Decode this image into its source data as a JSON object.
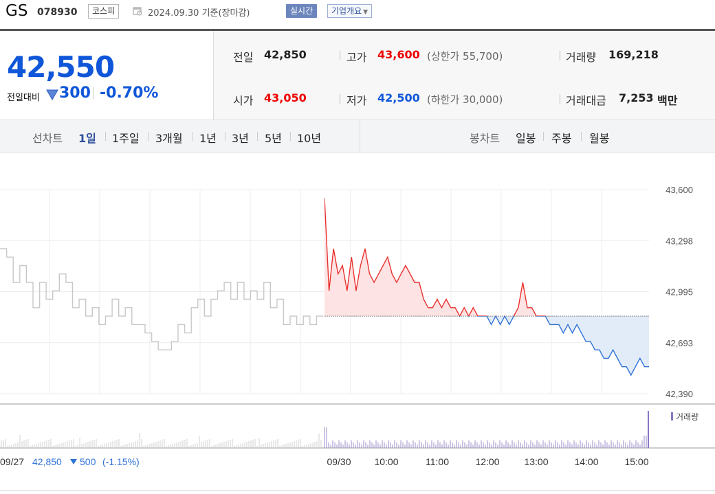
{
  "header": {
    "stock_name": "GS",
    "stock_code": "078930",
    "market": "코스피",
    "date_text": "2024.09.30  기준(장마감)",
    "realtime_label": "실시간",
    "company_label": "기업개요"
  },
  "quote": {
    "price": "42,550",
    "change_label": "전일대비",
    "change_amount": "300",
    "change_percent": "-0.70%",
    "prev_close_label": "전일",
    "prev_close": "42,850",
    "high_label": "고가",
    "high": "43,600",
    "upper_limit_text": "(상한가 55,700)",
    "volume_label": "거래량",
    "volume": "169,218",
    "open_label": "시가",
    "open": "43,050",
    "low_label": "저가",
    "low": "42,500",
    "lower_limit_text": "(하한가 30,000)",
    "amount_label": "거래대금",
    "amount": "7,253",
    "amount_unit": "백만"
  },
  "periods": {
    "line_chart_label": "선차트",
    "items": [
      "1일",
      "1주일",
      "3개월",
      "1년",
      "3년",
      "5년",
      "10년"
    ],
    "selected": "1일",
    "candle_chart_label": "봉차트",
    "candle_items": [
      "일봉",
      "주봉",
      "월봉"
    ]
  },
  "chart_data": {
    "type": "line",
    "title": "",
    "y_ticks": [
      "43,600",
      "43,298",
      "42,995",
      "42,693",
      "42,390"
    ],
    "ylim": [
      42390,
      43600
    ],
    "baseline": 42850,
    "x_labels": [
      "09/30",
      "10:00",
      "11:00",
      "12:00",
      "13:00",
      "14:00",
      "15:00"
    ],
    "prev_day_note": {
      "date": "09/27",
      "price": "42,850",
      "change": "500",
      "percent": "(-1.15%)"
    },
    "volume_label": "거래량",
    "series": [
      {
        "values": [
          43250,
          43200,
          43050,
          43150,
          43050,
          42900,
          43050,
          42950,
          43000,
          43100,
          43050,
          42900,
          42950,
          42850,
          42900,
          42800,
          42850,
          42950,
          42850,
          42900,
          42800,
          42800,
          42750,
          42700,
          42650,
          42650,
          42700,
          42800,
          42750,
          42900,
          42950,
          42850,
          42950,
          43000,
          43050,
          42950,
          43050,
          42950,
          43000,
          42950,
          43050,
          42900,
          42950,
          42800,
          42850,
          42800,
          42850,
          42800,
          42850,
          42850
        ]
      },
      {
        "values": [
          43550,
          43000,
          43250,
          43100,
          43150,
          43000,
          43200,
          43000,
          43150,
          43250,
          43100,
          43050,
          43100,
          43150,
          43200,
          43100,
          43050,
          43100,
          43150,
          43100,
          43050,
          43050,
          42950,
          42900,
          42900,
          42950,
          42900,
          42950,
          42900,
          42900,
          42850,
          42900,
          42850,
          42900,
          42850,
          42850,
          42850,
          42800,
          42850,
          42800,
          42850,
          42800,
          42850,
          42900,
          43050,
          42900,
          42900,
          42850,
          42850,
          42850,
          42800,
          42800,
          42800,
          42750,
          42800,
          42750,
          42800,
          42750,
          42700,
          42700,
          42650,
          42650,
          42600,
          42600,
          42650,
          42600,
          42550,
          42550,
          42500,
          42550,
          42600,
          42550,
          42550
        ]
      }
    ]
  }
}
